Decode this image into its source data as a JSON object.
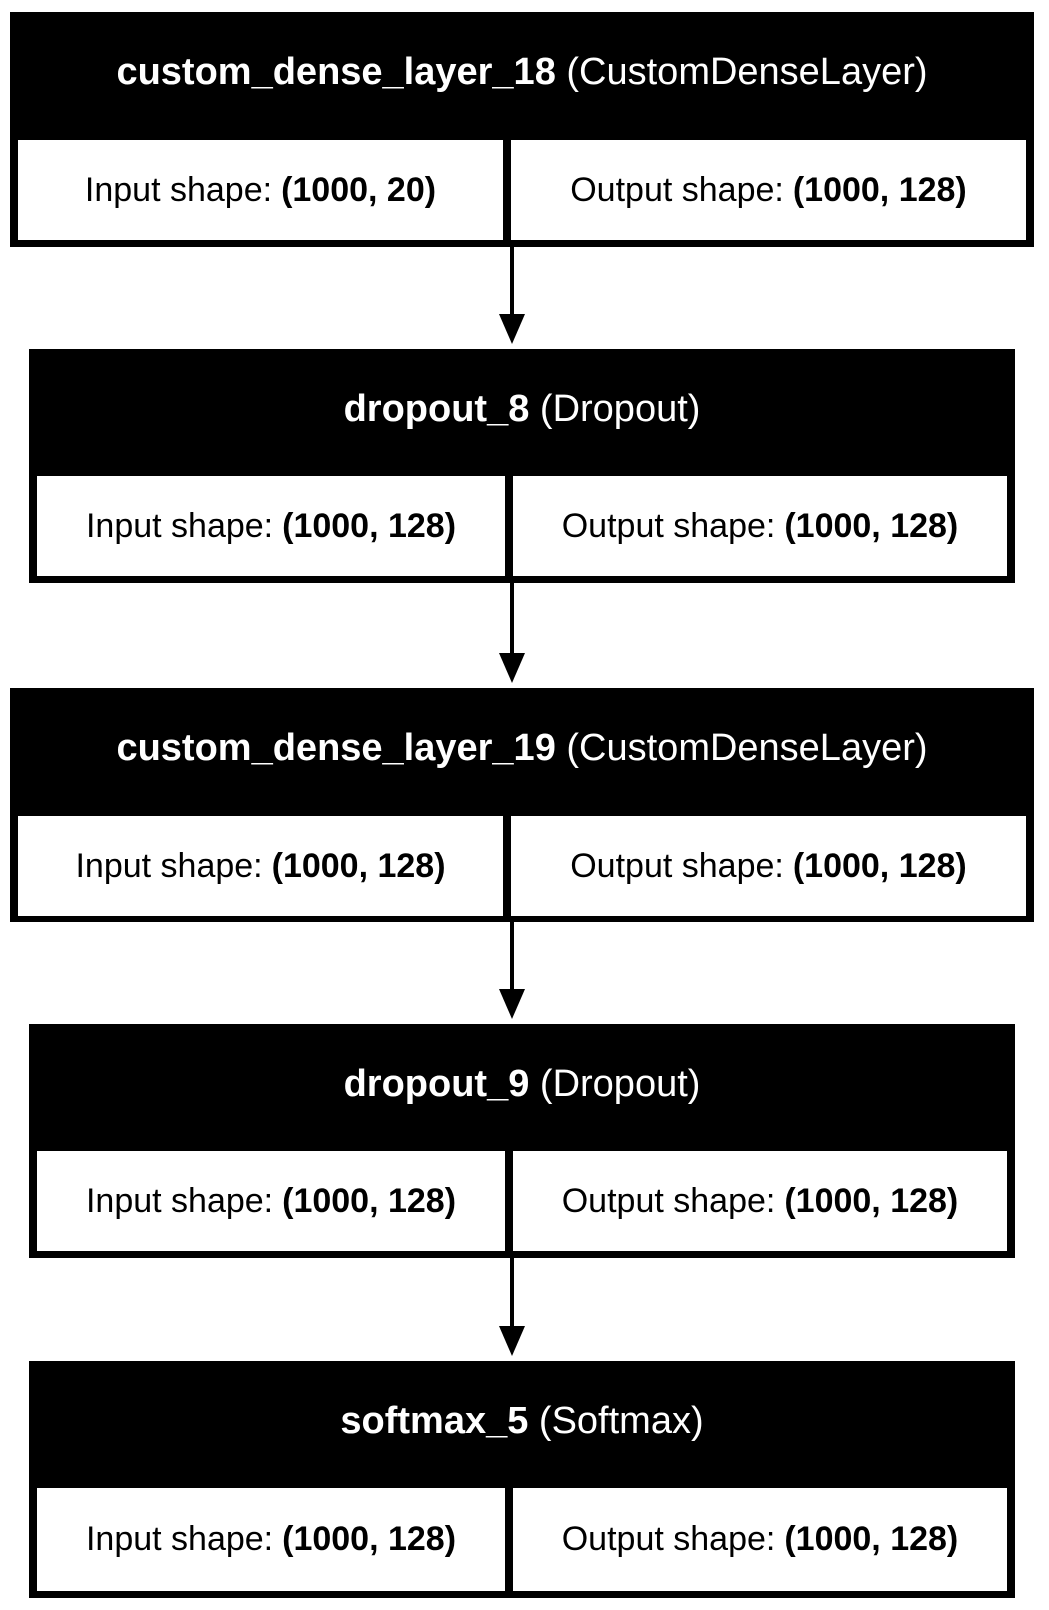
{
  "layers": [
    {
      "name": "custom_dense_layer_18",
      "type": "(CustomDenseLayer)",
      "input_label": "Input shape:",
      "input_shape": "(1000, 20)",
      "output_label": "Output shape:",
      "output_shape": "(1000, 128)"
    },
    {
      "name": "dropout_8",
      "type": "(Dropout)",
      "input_label": "Input shape:",
      "input_shape": "(1000, 128)",
      "output_label": "Output shape:",
      "output_shape": "(1000, 128)"
    },
    {
      "name": "custom_dense_layer_19",
      "type": "(CustomDenseLayer)",
      "input_label": "Input shape:",
      "input_shape": "(1000, 128)",
      "output_label": "Output shape:",
      "output_shape": "(1000, 128)"
    },
    {
      "name": "dropout_9",
      "type": "(Dropout)",
      "input_label": "Input shape:",
      "input_shape": "(1000, 128)",
      "output_label": "Output shape:",
      "output_shape": "(1000, 128)"
    },
    {
      "name": "softmax_5",
      "type": "(Softmax)",
      "input_label": "Input shape:",
      "input_shape": "(1000, 128)",
      "output_label": "Output shape:",
      "output_shape": "(1000, 128)"
    }
  ],
  "edges": [
    {
      "from": "custom_dense_layer_18",
      "to": "dropout_8"
    },
    {
      "from": "dropout_8",
      "to": "custom_dense_layer_19"
    },
    {
      "from": "custom_dense_layer_19",
      "to": "dropout_9"
    },
    {
      "from": "dropout_9",
      "to": "softmax_5"
    }
  ],
  "colors": {
    "header_bg": "#000000",
    "header_text": "#ffffff",
    "cell_bg": "#ffffff",
    "border": "#000000"
  }
}
